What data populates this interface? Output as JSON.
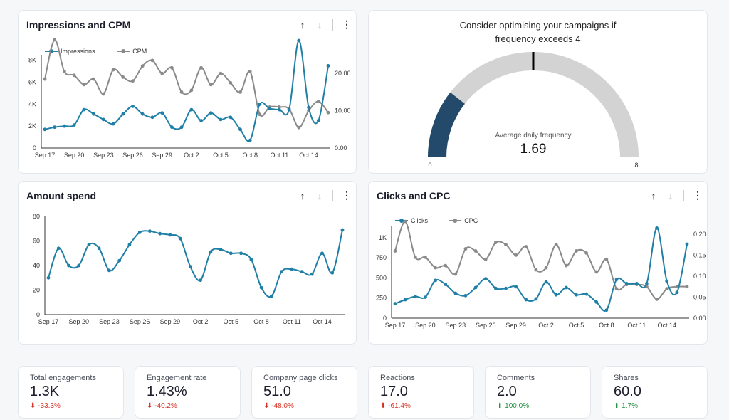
{
  "colors": {
    "blue": "#1f7fa6",
    "gray": "#8a8a8a",
    "gauge_fill": "#234a6b",
    "gauge_bg": "#d3d3d3"
  },
  "date_ticks": [
    "Sep 17",
    "Sep 20",
    "Sep 23",
    "Sep 26",
    "Sep 29",
    "Oct 2",
    "Oct 5",
    "Oct 8",
    "Oct 11",
    "Oct 14"
  ],
  "toolbar": {
    "up": "↑",
    "down": "↓",
    "more": "⋮"
  },
  "impressions_chart": {
    "title": "Impressions and CPM",
    "legend": [
      "Impressions",
      "CPM"
    ],
    "left_ticks": [
      "0",
      "2K",
      "4K",
      "6K",
      "8K"
    ],
    "right_ticks": [
      "0.00",
      "10.00",
      "20.00"
    ]
  },
  "gauge": {
    "title_line1": "Consider optimising your campaigns if",
    "title_line2": "frequency exceeds 4",
    "label": "Average daily frequency",
    "value": "1.69",
    "min": "0",
    "max": "8"
  },
  "amount_chart": {
    "title": "Amount spend",
    "left_ticks": [
      "0",
      "20",
      "40",
      "60",
      "80"
    ]
  },
  "clicks_chart": {
    "title": "Clicks and CPC",
    "legend": [
      "Clicks",
      "CPC"
    ],
    "left_ticks": [
      "0",
      "250",
      "500",
      "750",
      "1K"
    ],
    "right_ticks": [
      "0.00",
      "0.05",
      "0.10",
      "0.15",
      "0.20"
    ]
  },
  "kpis": [
    {
      "label": "Total engagements",
      "value": "1.3K",
      "arrow": "⬇",
      "delta": "-33.3%",
      "dir": "neg"
    },
    {
      "label": "Engagement rate",
      "value": "1.43%",
      "arrow": "⬇",
      "delta": "-40.2%",
      "dir": "neg"
    },
    {
      "label": "Company page clicks",
      "value": "51.0",
      "arrow": "⬇",
      "delta": "-48.0%",
      "dir": "neg"
    },
    {
      "label": "Reactions",
      "value": "17.0",
      "arrow": "⬇",
      "delta": "-61.4%",
      "dir": "neg"
    },
    {
      "label": "Comments",
      "value": "2.0",
      "arrow": "⬆",
      "delta": "100.0%",
      "dir": "pos"
    },
    {
      "label": "Shares",
      "value": "60.0",
      "arrow": "⬆",
      "delta": "1.7%",
      "dir": "pos"
    }
  ],
  "chart_data": [
    {
      "type": "line",
      "title": "Impressions and CPM",
      "x_start": "Sep 17",
      "x_count": 30,
      "series": [
        {
          "name": "Impressions",
          "axis": "left",
          "ylim": [
            0,
            8500
          ],
          "values": [
            1700,
            1900,
            2000,
            2100,
            3500,
            3100,
            2600,
            2200,
            3100,
            3800,
            3100,
            2800,
            3200,
            1900,
            1900,
            3500,
            2500,
            3200,
            2600,
            2800,
            1700,
            700,
            4000,
            3600,
            3500,
            3500,
            9800,
            3700,
            2500,
            7500
          ]
        },
        {
          "name": "CPM",
          "axis": "right",
          "ylim": [
            0,
            25
          ],
          "values": [
            18.5,
            29,
            20.5,
            19.5,
            17,
            18.5,
            14.5,
            21,
            19,
            18,
            22,
            23.5,
            20,
            21.5,
            15,
            15.5,
            21.5,
            17,
            20,
            17.5,
            15,
            20.5,
            9,
            11,
            11,
            10.5,
            5.5,
            10,
            12.5,
            9.5
          ]
        }
      ]
    },
    {
      "type": "gauge",
      "title": "Average daily frequency",
      "value": 1.69,
      "min": 0,
      "max": 8,
      "threshold": 4
    },
    {
      "type": "line",
      "title": "Amount spend",
      "x_start": "Sep 17",
      "x_count": 30,
      "series": [
        {
          "name": "Amount spend",
          "axis": "left",
          "ylim": [
            0,
            80
          ],
          "values": [
            30,
            54,
            40,
            40,
            57,
            54,
            36,
            44,
            57,
            67,
            68,
            66,
            65,
            62,
            39,
            28,
            51,
            53,
            50,
            50,
            45,
            22,
            15,
            35,
            37,
            35,
            33,
            50,
            34,
            69
          ]
        }
      ]
    },
    {
      "type": "line",
      "title": "Clicks and CPC",
      "x_start": "Sep 17",
      "x_count": 30,
      "series": [
        {
          "name": "Clicks",
          "axis": "left",
          "ylim": [
            0,
            1150
          ],
          "values": [
            180,
            230,
            270,
            260,
            470,
            420,
            310,
            280,
            380,
            490,
            370,
            370,
            390,
            230,
            240,
            450,
            290,
            380,
            290,
            300,
            200,
            100,
            480,
            430,
            430,
            430,
            1120,
            460,
            320,
            920
          ]
        },
        {
          "name": "CPC",
          "axis": "right",
          "ylim": [
            0,
            0.22
          ],
          "values": [
            0.16,
            0.23,
            0.145,
            0.145,
            0.12,
            0.125,
            0.105,
            0.165,
            0.16,
            0.14,
            0.18,
            0.175,
            0.15,
            0.17,
            0.115,
            0.12,
            0.175,
            0.125,
            0.16,
            0.155,
            0.11,
            0.14,
            0.07,
            0.08,
            0.08,
            0.075,
            0.045,
            0.07,
            0.075,
            0.075
          ]
        }
      ]
    }
  ]
}
